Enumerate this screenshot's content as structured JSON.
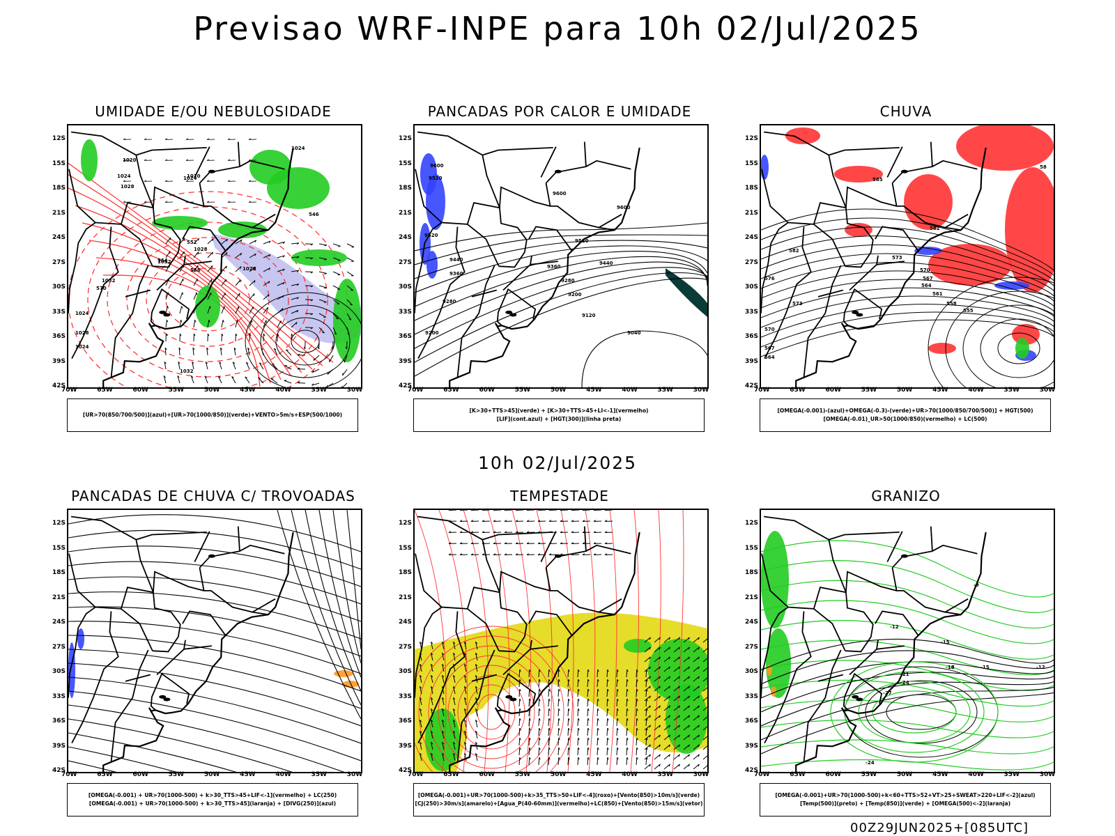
{
  "header": {
    "title": "Previsao WRF-INPE  para 10h 02/Jul/2025"
  },
  "subtitle": "10h 02/Jul/2025",
  "footer": "00Z29JUN2025+[085UTC]",
  "axes": {
    "lat_labels": [
      "12S",
      "15S",
      "18S",
      "21S",
      "24S",
      "27S",
      "30S",
      "33S",
      "36S",
      "39S",
      "42S"
    ],
    "lon_labels": [
      "70W",
      "65W",
      "60W",
      "55W",
      "50W",
      "45W",
      "40W",
      "35W",
      "30W"
    ]
  },
  "colors": {
    "red": "#ff3333",
    "green": "#22cc22",
    "blue": "#3344ff",
    "lavender": "#b8b8ee",
    "yellow": "#e6dc2a",
    "orange": "#ff9922",
    "dark_green": "#0b3b38"
  },
  "panels": [
    {
      "title": "UMIDADE E/OU NEBULOSIDADE",
      "legend": [
        "[UR>70(850/700/500)](azul)+[UR>70(1000/850)](verde)+VENTO>5m/s+ESP(500/1000)"
      ],
      "contour_labels": [
        "1020",
        "1024",
        "1028",
        "1024",
        "1020",
        "1024",
        "1028",
        "1032",
        "1032",
        "1028",
        "1024",
        "1028",
        "1024",
        "1032",
        "546",
        "552",
        "558",
        "564",
        "570"
      ]
    },
    {
      "title": "PANCADAS POR CALOR E UMIDADE",
      "legend": [
        "[K>30+TTS>45](verde) + [K>30+TTS>45+LI<-1](vermelho)",
        "[LIF](cont.azul) + [HGT(300)](linha preta)"
      ],
      "contour_labels": [
        "9600",
        "9520",
        "9600",
        "9600",
        "9520",
        "9520",
        "9440",
        "9440",
        "9360",
        "9360",
        "9280",
        "9280",
        "9200",
        "9200",
        "9120",
        "9040"
      ]
    },
    {
      "title": "CHUVA",
      "legend": [
        "[OMEGA(-0.001)-(azul)+OMEGA(-0.3)-(verde)+UR>70(1000/850/700/500)] + HGT(500)",
        "[OMEGA(-0.01)_UR>50(1000/850)(vermelho) + LC(500)"
      ],
      "contour_labels": [
        "585",
        "582",
        "573",
        "570",
        "567",
        "564",
        "561",
        "558",
        "555",
        "576",
        "573",
        "570",
        "567",
        "564",
        "582",
        "58"
      ]
    },
    {
      "title": "PANCADAS DE CHUVA C/ TROVOADAS",
      "legend": [
        "[OMEGA(-0.001) + UR>70(1000-500) + k>30_TTS>45+LIF<-1](vermelho) + LC(250)",
        "[OMEGA(-0.001) + UR>70(1000-500) + k>30_TTS>45](laranja) + [DIVG(250)](azul)"
      ],
      "contour_labels": []
    },
    {
      "title": "TEMPESTADE",
      "legend": [
        "[OMEGA(-0.001)+UR>70(1000-500)+k>35_TTS>50+LIF<-4](roxo)+[Vento(850)>10m/s](verde)",
        "[CJ(250)>30m/s](amarelo)+[Agua_P(40-60mm)](vermelho)+LC(850)+[Vento(850)>15m/s](vetor)"
      ],
      "contour_labels": []
    },
    {
      "title": "GRANIZO",
      "legend": [
        "[OMEGA(-0.001)+UR>70(1000-500)+k<60+TTS>52+VT>25+SWEAT>220+LIF<-2](azul)",
        "[Temp(500)](preto) + [Temp(850)](verde) + [OMEGA(500)<-2](laranja)"
      ],
      "contour_labels": [
        "-9",
        "-12",
        "-15",
        "-18",
        "-21",
        "-24",
        "-27",
        "-24",
        "-18",
        "-15",
        "-12"
      ]
    }
  ]
}
